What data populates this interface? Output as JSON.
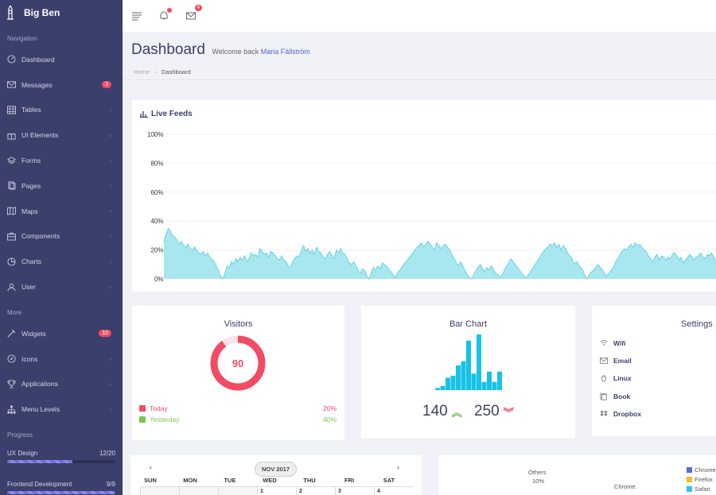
{
  "brand": {
    "name": "Big Ben"
  },
  "sidebar": {
    "section_navigation": "Navigation",
    "section_more": "More",
    "section_progress": "Progress",
    "nav_items": [
      {
        "label": "Dashboard",
        "icon": "gauge-icon"
      },
      {
        "label": "Messages",
        "icon": "envelope-icon",
        "badge": "3"
      },
      {
        "label": "Tables",
        "icon": "table-icon"
      },
      {
        "label": "UI Elements",
        "icon": "gift-icon"
      },
      {
        "label": "Forms",
        "icon": "layers-icon"
      },
      {
        "label": "Pages",
        "icon": "pages-icon"
      },
      {
        "label": "Maps",
        "icon": "map-icon"
      },
      {
        "label": "Components",
        "icon": "briefcase-icon"
      },
      {
        "label": "Charts",
        "icon": "pie-icon"
      },
      {
        "label": "User",
        "icon": "user-icon"
      }
    ],
    "more_items": [
      {
        "label": "Widgets",
        "icon": "plug-icon",
        "badge": "10"
      },
      {
        "label": "Icons",
        "icon": "compass-icon"
      },
      {
        "label": "Applications",
        "icon": "trophy-icon"
      },
      {
        "label": "Menu Levels",
        "icon": "sitemap-icon"
      }
    ],
    "progress": [
      {
        "label": "UX Design",
        "value": "12/20",
        "fraction": 0.6
      },
      {
        "label": "Frontend Development",
        "value": "9/9",
        "fraction": 1.0
      }
    ]
  },
  "topbar": {
    "mail_count": "4"
  },
  "header": {
    "title": "Dashboard",
    "welcome": "Welcome back",
    "user": "Maria Fällström",
    "crumb_home": "Home",
    "crumb_current": "Dashboard"
  },
  "live_feeds": {
    "title": "Live Feeds",
    "chart_data": {
      "type": "area",
      "y_ticks": [
        "100%",
        "80%",
        "60%",
        "40%",
        "20%",
        "0%"
      ],
      "ylim": [
        0,
        100
      ],
      "color": "#a8e6f0",
      "stroke": "#4fd0e4",
      "values": [
        26,
        31,
        35,
        33,
        30,
        29,
        27,
        24,
        26,
        23,
        22,
        24,
        21,
        20,
        22,
        20,
        18,
        17,
        19,
        16,
        18,
        15,
        14,
        12,
        9,
        6,
        2,
        0,
        4,
        9,
        8,
        12,
        10,
        14,
        12,
        15,
        13,
        16,
        12,
        14,
        18,
        16,
        17,
        15,
        21,
        19,
        17,
        18,
        15,
        19,
        18,
        16,
        14,
        13,
        16,
        13,
        12,
        9,
        8,
        12,
        14,
        16,
        15,
        20,
        23,
        19,
        21,
        18,
        20,
        17,
        22,
        19,
        18,
        15,
        14,
        17,
        19,
        16,
        14,
        20,
        18,
        21,
        18,
        17,
        14,
        11,
        10,
        12,
        9,
        6,
        4,
        7,
        6,
        2,
        0,
        4,
        8,
        6,
        9,
        7,
        11,
        10,
        9,
        7,
        5,
        3,
        1,
        4,
        6,
        8,
        10,
        12,
        14,
        16,
        18,
        20,
        22,
        23,
        25,
        22,
        24,
        26,
        24,
        22,
        20,
        25,
        23,
        21,
        23,
        24,
        22,
        20,
        17,
        14,
        11,
        9,
        12,
        9,
        6,
        3,
        1,
        0,
        3,
        6,
        8,
        10,
        7,
        5,
        8,
        6,
        9,
        7,
        4,
        3,
        1,
        3,
        6,
        9,
        11,
        14,
        12,
        10,
        8,
        6,
        4,
        2,
        1,
        3,
        5,
        7,
        10,
        12,
        14,
        17,
        19,
        21,
        22,
        24,
        23,
        25,
        22,
        24,
        20,
        23,
        21,
        18,
        16,
        14,
        10,
        12,
        10,
        8,
        6,
        2,
        0,
        3,
        5,
        6,
        8,
        10,
        8,
        6,
        4,
        2,
        4,
        6,
        8,
        12,
        14,
        17,
        19,
        21,
        20,
        22,
        24,
        22,
        25,
        23,
        24,
        22,
        20,
        19,
        16,
        14,
        12,
        15,
        17,
        13,
        16,
        15,
        13,
        15,
        14,
        17,
        18,
        16,
        13,
        15,
        11,
        13,
        15,
        17,
        15,
        13,
        15,
        16,
        18,
        15,
        14,
        17,
        16,
        18,
        15,
        12
      ]
    }
  },
  "visitors": {
    "title": "Visitors",
    "value": "90",
    "fraction": 0.9,
    "legend": [
      {
        "label": "Today",
        "pct": "20%",
        "color": "#f24b63"
      },
      {
        "label": "Yesterday",
        "pct": "40%",
        "color": "#7cc552"
      }
    ]
  },
  "bar_chart": {
    "title": "Bar Chart",
    "chart_data": {
      "type": "bar",
      "values": [
        1,
        2,
        6,
        7,
        12,
        14,
        24,
        8,
        27,
        4,
        9,
        4,
        9
      ],
      "color": "#17c2e6"
    },
    "stat_up": "140",
    "stat_down": "250"
  },
  "settings": {
    "title": "Settings",
    "items": [
      {
        "label": "Wifi",
        "icon": "wifi-icon"
      },
      {
        "label": "Email",
        "icon": "envelope-icon"
      },
      {
        "label": "Linux",
        "icon": "linux-icon"
      },
      {
        "label": "Book",
        "icon": "book-icon"
      },
      {
        "label": "Dropbox",
        "icon": "dropbox-icon"
      }
    ]
  },
  "calendar": {
    "month": "NOV 2017",
    "prev": "‹",
    "next": "›",
    "days": [
      "SUN",
      "MON",
      "TUE",
      "WED",
      "THU",
      "FRI",
      "SAT"
    ],
    "first_row": [
      "",
      "",
      "",
      "1",
      "2",
      "3",
      "4"
    ]
  },
  "browser_pie": {
    "label_others": "Others",
    "label_others_pct": "10%",
    "label_chrome": "Chrome",
    "legend": [
      {
        "label": "Chrome",
        "color": "#5a6ad8"
      },
      {
        "label": "Firefox",
        "color": "#f5b82e"
      },
      {
        "label": "Safari",
        "color": "#2ec4e6"
      }
    ]
  }
}
